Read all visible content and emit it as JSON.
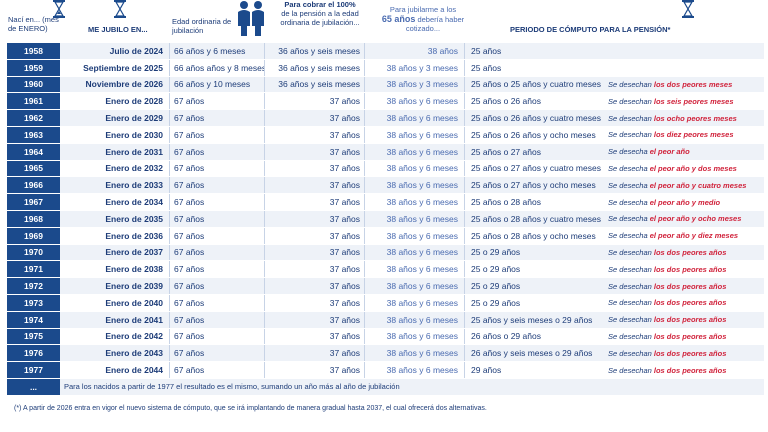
{
  "header": {
    "col1": "Nací en... (mes de ENERO)",
    "col2": "ME JUBILO EN...",
    "col3": "Edad ordinaria de jubilación",
    "col4a": "Para cobrar el 100%",
    "col4b": "de la pensión a la edad ordinaria de jubilación...",
    "col5a": "Para jubilarme a los",
    "col5b": "65 años",
    "col5c": "debería haber cotizado...",
    "col6": "PERIODO DE CÓMPUTO PARA LA PENSIÓN*"
  },
  "rows": [
    {
      "year": "1958",
      "jub": "Julio de 2024",
      "edad": "66 años y 6 meses",
      "cien": "36 años y seis meses",
      "cot": "38 años",
      "per": "25 años",
      "des1": "",
      "des2": ""
    },
    {
      "year": "1959",
      "jub": "Septiembre de 2025",
      "edad": "66 años años y 8 meses",
      "cien": "36 años y seis meses",
      "cot": "38 años y 3 meses",
      "per": "25 años",
      "des1": "",
      "des2": ""
    },
    {
      "year": "1960",
      "jub": "Noviembre de 2026",
      "edad": "66 años y 10 meses",
      "cien": "36 años y seis meses",
      "cot": "38 años y 3 meses",
      "per": "25 años o 25 años y cuatro meses",
      "des1": "Se desechan ",
      "des2": "los dos peores meses"
    },
    {
      "year": "1961",
      "jub": "Enero de 2028",
      "edad": "67 años",
      "cien": "37 años",
      "cot": "38 años y 6 meses",
      "per": "25 años o 26 años",
      "des1": "Se desechan ",
      "des2": "los seis peores meses"
    },
    {
      "year": "1962",
      "jub": "Enero de 2029",
      "edad": "67 años",
      "cien": "37 años",
      "cot": "38 años y 6 meses",
      "per": "25 años o 26 años y cuatro meses",
      "des1": "Se desechan ",
      "des2": "los ocho peores meses"
    },
    {
      "year": "1963",
      "jub": "Enero de 2030",
      "edad": "67 años",
      "cien": "37 años",
      "cot": "38 años y 6 meses",
      "per": "25 años o 26 años y ocho meses",
      "des1": "Se desechan ",
      "des2": "los diez peores meses"
    },
    {
      "year": "1964",
      "jub": "Enero de 2031",
      "edad": "67 años",
      "cien": "37 años",
      "cot": "38 años y 6 meses",
      "per": "25 años o 27 años",
      "des1": "Se desecha ",
      "des2": "el peor año"
    },
    {
      "year": "1965",
      "jub": "Enero de 2032",
      "edad": "67 años",
      "cien": "37 años",
      "cot": "38 años y 6 meses",
      "per": "25 años o 27 años y cuatro meses",
      "des1": "Se desecha ",
      "des2": "el peor año y dos meses"
    },
    {
      "year": "1966",
      "jub": "Enero de 2033",
      "edad": "67 años",
      "cien": "37 años",
      "cot": "38 años y 6 meses",
      "per": "25 años o 27 años y ocho meses",
      "des1": "Se desecha ",
      "des2": "el peor año y cuatro meses"
    },
    {
      "year": "1967",
      "jub": "Enero de 2034",
      "edad": "67 años",
      "cien": "37 años",
      "cot": "38 años y 6 meses",
      "per": "25 años o 28 años",
      "des1": "Se desecha ",
      "des2": "el peor año y medio"
    },
    {
      "year": "1968",
      "jub": "Enero de 2035",
      "edad": "67 años",
      "cien": "37 años",
      "cot": "38 años y 6 meses",
      "per": "25 años o 28 años y cuatro meses",
      "des1": "Se desecha ",
      "des2": "el peor año y ocho meses"
    },
    {
      "year": "1969",
      "jub": "Enero de 2036",
      "edad": "67 años",
      "cien": "37 años",
      "cot": "38 años y 6 meses",
      "per": "25 años o 28 años y ocho meses",
      "des1": "Se desecha ",
      "des2": "el peor año y diez meses"
    },
    {
      "year": "1970",
      "jub": "Enero de 2037",
      "edad": "67 años",
      "cien": "37 años",
      "cot": "38 años y 6 meses",
      "per": "25 o 29 años",
      "des1": "Se desechan ",
      "des2": "los dos peores años"
    },
    {
      "year": "1971",
      "jub": "Enero de 2038",
      "edad": "67 años",
      "cien": "37 años",
      "cot": "38 años y 6 meses",
      "per": "25 o 29 años",
      "des1": "Se desechan ",
      "des2": "los dos peores años"
    },
    {
      "year": "1972",
      "jub": "Enero de 2039",
      "edad": "67 años",
      "cien": "37 años",
      "cot": "38 años y 6 meses",
      "per": "25 o 29 años",
      "des1": "Se desechan ",
      "des2": "los dos peores años"
    },
    {
      "year": "1973",
      "jub": "Enero de 2040",
      "edad": "67 años",
      "cien": "37 años",
      "cot": "38 años y 6 meses",
      "per": "25 o 29 años",
      "des1": "Se desechan ",
      "des2": "los dos peores años"
    },
    {
      "year": "1974",
      "jub": "Enero de 2041",
      "edad": "67 años",
      "cien": "37 años",
      "cot": "38 años y 6 meses",
      "per": "25 años y seis meses o 29 años",
      "des1": "Se desechan ",
      "des2": "los dos peores años"
    },
    {
      "year": "1975",
      "jub": "Enero de 2042",
      "edad": "67 años",
      "cien": "37 años",
      "cot": "38 años y 6 meses",
      "per": "26 años o 29 años",
      "des1": "Se desechan ",
      "des2": "los dos peores años"
    },
    {
      "year": "1976",
      "jub": "Enero de 2043",
      "edad": "67 años",
      "cien": "37 años",
      "cot": "38 años y 6 meses",
      "per": "26 años y seis meses o 29 años",
      "des1": "Se desechan ",
      "des2": "los dos peores años"
    },
    {
      "year": "1977",
      "jub": "Enero de 2044",
      "edad": "67 años",
      "cien": "37 años",
      "cot": "38 años y 6 meses",
      "per": "29 años",
      "des1": "Se desechan ",
      "des2": "los dos peores años"
    }
  ],
  "continuation": {
    "year": "...",
    "text": "Para los nacidos a partir de 1977 el resultado es el mismo, sumando un año más al año de jubilación"
  },
  "footnote": "(*) A partir de 2026 entra en vigor el nuevo sistema de cómputo, que se irá implantando de manera gradual hasta 2037, el cual ofrecerá dos alternativas.",
  "icons": [
    "hourglass-icon",
    "people-icon"
  ],
  "colors": {
    "navy": "#1b4a8c",
    "red": "#d0213a",
    "rowTint": "#eef2f8"
  }
}
